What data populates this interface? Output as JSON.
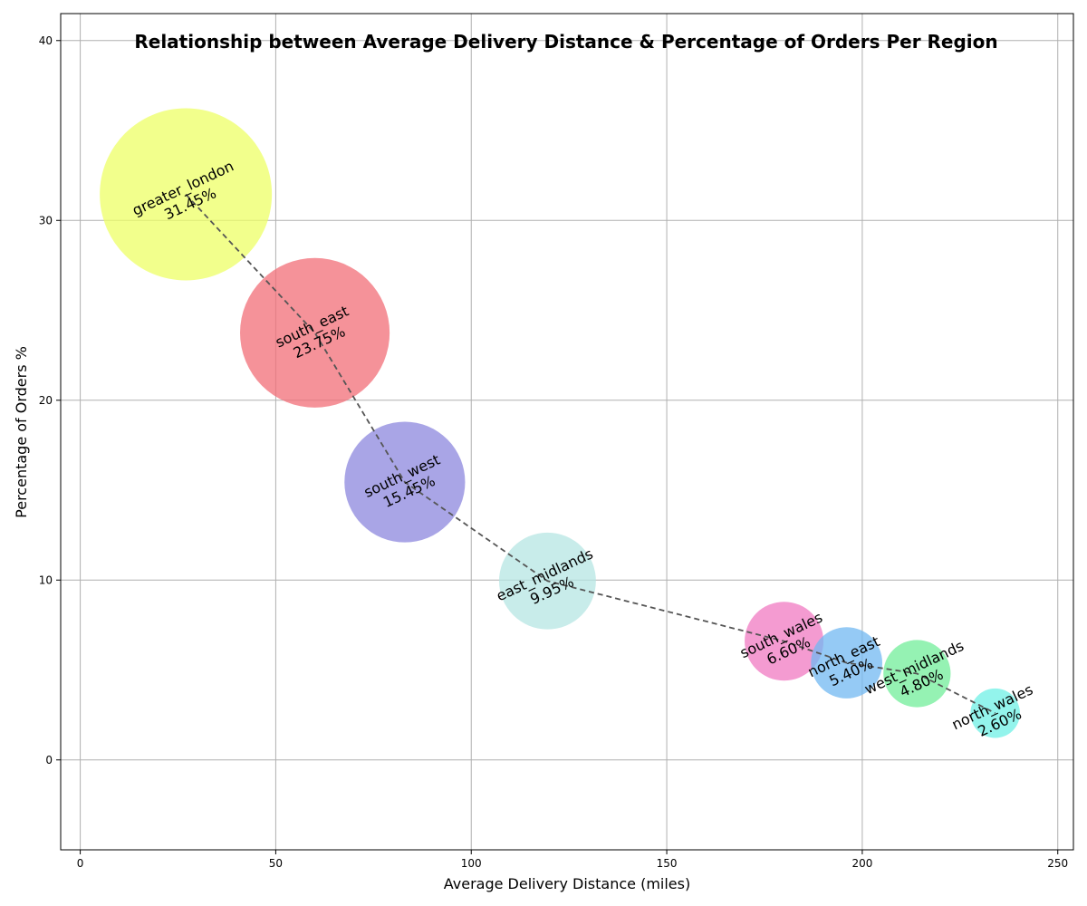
{
  "chart_data": {
    "type": "scatter",
    "title": "Relationship between Average Delivery Distance & Percentage of Orders Per Region",
    "xlabel": "Average Delivery Distance (miles)",
    "ylabel": "Percentage of Orders %",
    "xlim": [
      -5,
      254
    ],
    "ylim": [
      -5,
      41.5
    ],
    "xticks": [
      0,
      50,
      100,
      150,
      200,
      250
    ],
    "yticks": [
      0,
      10,
      20,
      30,
      40
    ],
    "grid": true,
    "connecting_line": "dashed",
    "points": [
      {
        "region": "greater_london",
        "x": 27,
        "y": 31.45,
        "label": "31.45%",
        "color": "#eeff66"
      },
      {
        "region": "south_east",
        "x": 60,
        "y": 23.75,
        "label": "23.75%",
        "color": "#f26d77"
      },
      {
        "region": "south_west",
        "x": 83,
        "y": 15.45,
        "label": "15.45%",
        "color": "#8c87dd"
      },
      {
        "region": "east_midlands",
        "x": 119.5,
        "y": 9.95,
        "label": "9.95%",
        "color": "#b5e6e3"
      },
      {
        "region": "south_wales",
        "x": 180,
        "y": 6.6,
        "label": "6.60%",
        "color": "#f07ac2"
      },
      {
        "region": "north_east",
        "x": 196,
        "y": 5.4,
        "label": "5.40%",
        "color": "#72b8f2"
      },
      {
        "region": "west_midlands",
        "x": 214,
        "y": 4.8,
        "label": "4.80%",
        "color": "#72ee9a"
      },
      {
        "region": "north_wales",
        "x": 234,
        "y": 2.6,
        "label": "2.60%",
        "color": "#6ff0e6"
      }
    ]
  }
}
